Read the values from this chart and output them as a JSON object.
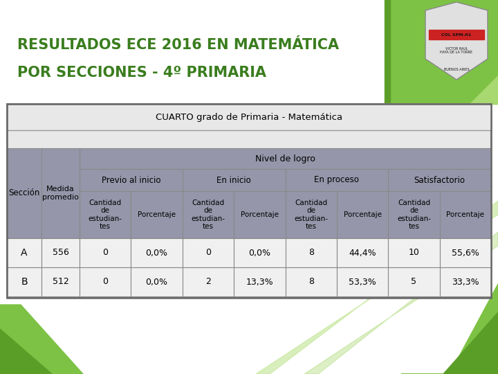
{
  "title_line1": "RESULTADOS ECE 2016 EN MATEMÁTICA",
  "title_line2": "POR SECCIONES - 4º PRIMARIA",
  "title_color": "#3A7D1E",
  "table_title": "CUARTO grado de Primaria - Matemática",
  "header_fill": "#9696AA",
  "nivel_logro_header": "Nivel de logro",
  "col_headers_level1": [
    "Previo al inicio",
    "En inicio",
    "En proceso",
    "Satisfactorio"
  ],
  "row_header_col1": "Sección",
  "row_header_col2": "Medida\npromedio",
  "sub_header_cant": "Cantidad\nde\nestudian-\ntes",
  "sub_header_pct": "Porcentaje",
  "rows": [
    {
      "seccion": "A",
      "medida": "556",
      "prev_cant": "0",
      "prev_pct": "0,0%",
      "ini_cant": "0",
      "ini_pct": "0,0%",
      "proc_cant": "8",
      "proc_pct": "44,4%",
      "sat_cant": "10",
      "sat_pct": "55,6%"
    },
    {
      "seccion": "B",
      "medida": "512",
      "prev_cant": "0",
      "prev_pct": "0,0%",
      "ini_cant": "2",
      "ini_pct": "13,3%",
      "proc_cant": "8",
      "proc_pct": "53,3%",
      "sat_cant": "5",
      "sat_pct": "33,3%"
    }
  ],
  "green_dark": "#5A9E28",
  "green_mid": "#7DC244",
  "green_light": "#A8D870",
  "green_pale": "#C8E8A0",
  "header_bg_color": "#F0F0F0",
  "table_border": "#888888",
  "cell_border": "#AAAAAA",
  "data_row_fill": "#F0F0F0"
}
